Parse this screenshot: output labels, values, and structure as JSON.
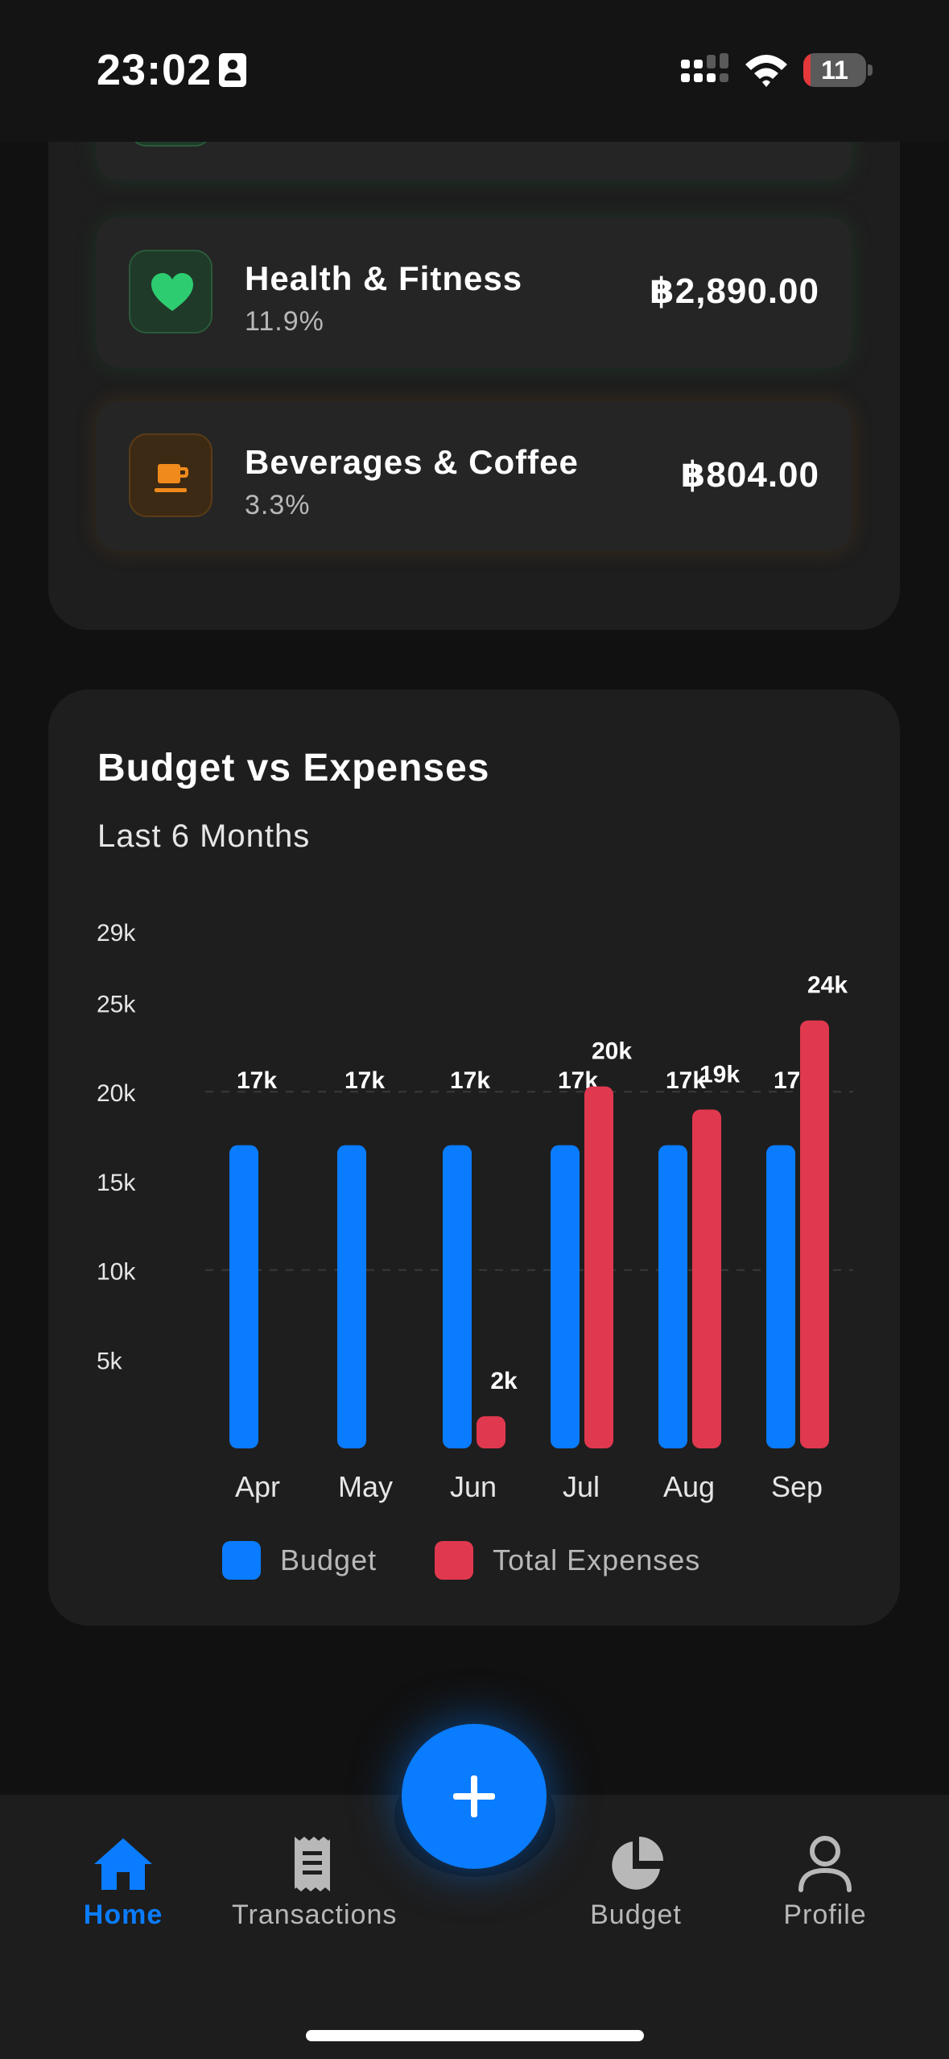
{
  "status_bar": {
    "time": "23:02",
    "battery": "11",
    "battery_level": 0.11
  },
  "categories": [
    {
      "name": "Health & Fitness",
      "percent": "11.9%",
      "amount": "฿2,890.00",
      "icon": "heart-icon",
      "color": "#2ecc71"
    },
    {
      "name": "Beverages & Coffee",
      "percent": "3.3%",
      "amount": "฿804.00",
      "icon": "coffee-cup-icon",
      "color": "#f08a1c"
    }
  ],
  "chart": {
    "title": "Budget vs Expenses",
    "subtitle": "Last 6 Months"
  },
  "chart_data": {
    "type": "bar",
    "categories": [
      "Apr",
      "May",
      "Jun",
      "Jul",
      "Aug",
      "Sep"
    ],
    "series": [
      {
        "name": "Budget",
        "values": [
          17000,
          17000,
          17000,
          17000,
          17000,
          17000
        ],
        "labels": [
          "17k",
          "17k",
          "17k",
          "17k",
          "17k",
          "17k"
        ],
        "color": "#0a7cff"
      },
      {
        "name": "Total Expenses",
        "values": [
          0,
          0,
          1800,
          20300,
          19000,
          24000
        ],
        "labels": [
          "",
          "",
          "2k",
          "20k",
          "19k",
          "24k"
        ],
        "color": "#e0384e"
      }
    ],
    "y_ticks": [
      "29k",
      "25k",
      "20k",
      "15k",
      "10k",
      "5k"
    ],
    "y_tick_values": [
      29000,
      25000,
      20000,
      15000,
      10000,
      5000
    ],
    "ylim": [
      0,
      29000
    ],
    "grid": "dashed at 10k and 20k",
    "legend_position": "bottom"
  },
  "legend": {
    "budget": "Budget",
    "expenses": "Total Expenses",
    "budget_color": "#0a7cff",
    "expenses_color": "#e0384e"
  },
  "nav": {
    "home": "Home",
    "transactions": "Transactions",
    "budget": "Budget",
    "profile": "Profile",
    "active": "home",
    "active_color": "#0a7cff"
  }
}
